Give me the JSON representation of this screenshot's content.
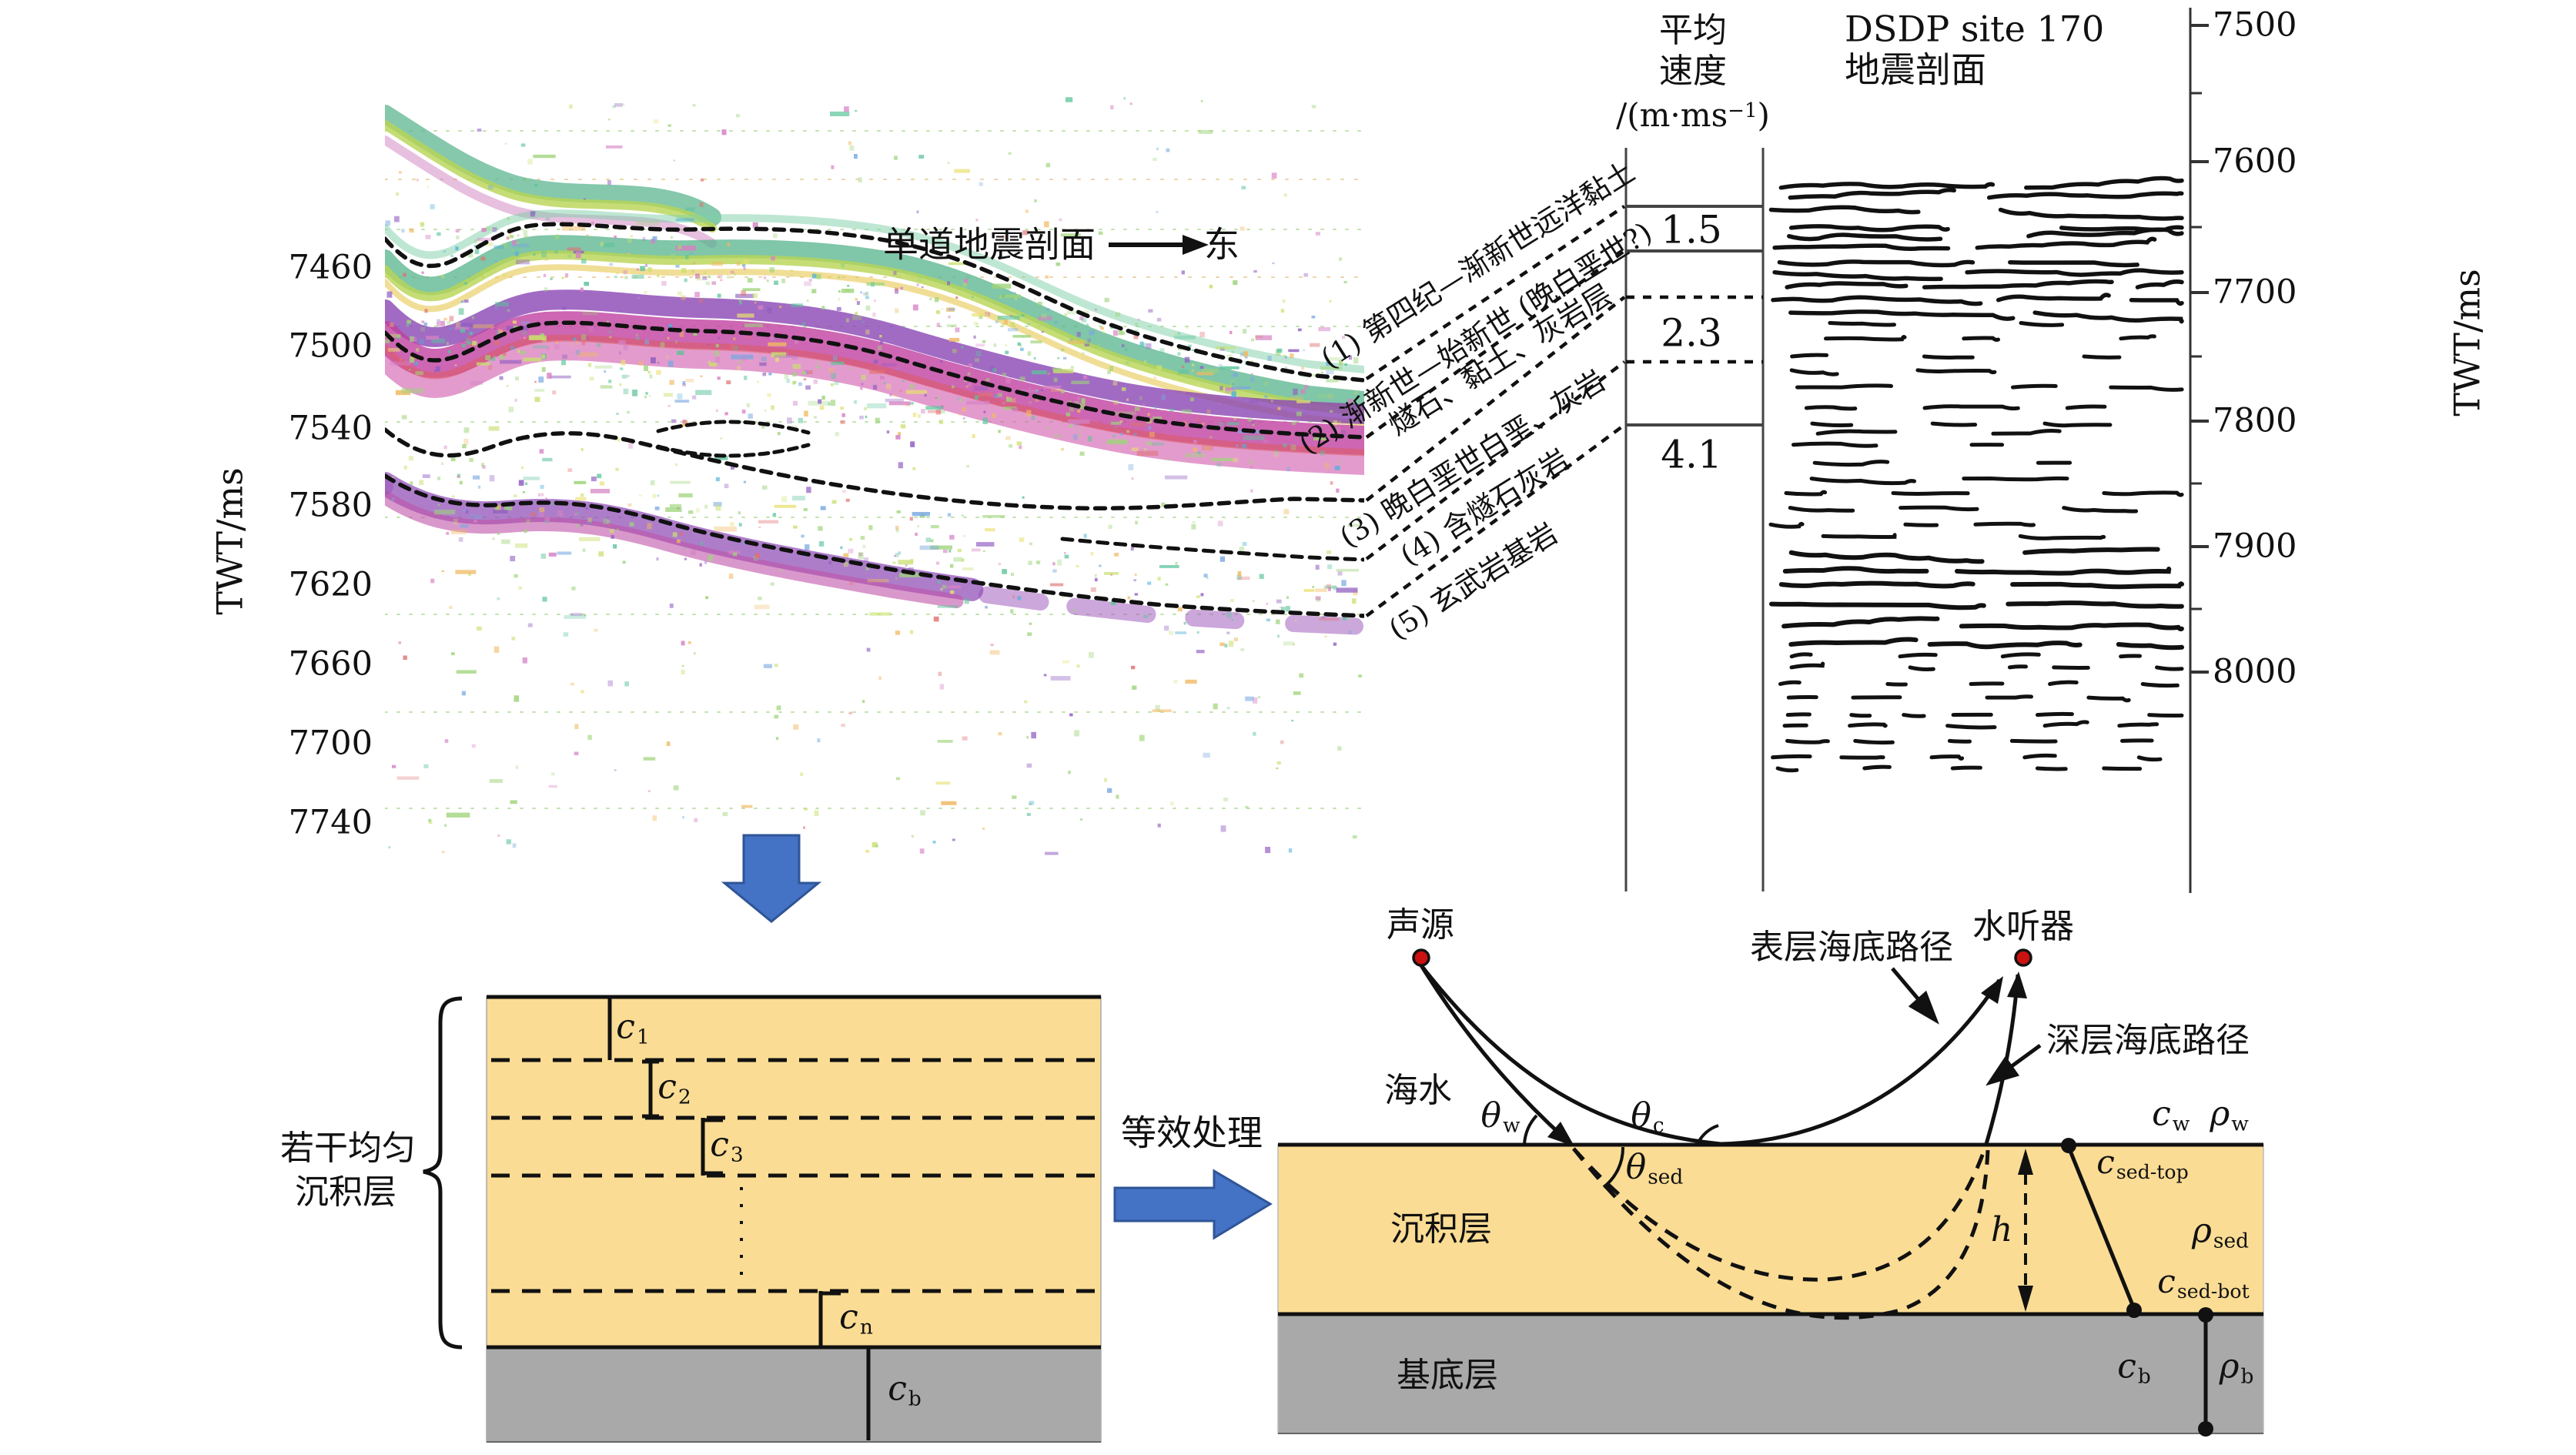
{
  "colors": {
    "sand": "#fadc94",
    "basement_gray": "#a9a9a9",
    "arrow_blue": "#4472c4",
    "marker_red": "#cc1111",
    "seismic_green": "#56b38c",
    "seismic_magenta": "#c040a0",
    "seismic_purple": "#8a46b4"
  },
  "seismic": {
    "title": "单道地震剖面",
    "east_label": "东",
    "axis_label": "TWT/ms",
    "ticks": [
      "7460",
      "7500",
      "7540",
      "7580",
      "7620",
      "7660",
      "7700",
      "7740"
    ]
  },
  "velocity": {
    "header_line1": "平均",
    "header_line2": "速度",
    "unit_prefix": "/(m·ms",
    "unit_sup": "−1",
    "unit_suffix": ")",
    "values": [
      "1.5",
      "2.3",
      "4.1"
    ]
  },
  "dsdp": {
    "title_line1": "DSDP site 170",
    "title_line2": "地震剖面",
    "axis_label": "TWT/ms",
    "ticks": [
      "7500",
      "7600",
      "7700",
      "7800",
      "7900",
      "8000"
    ]
  },
  "strata": {
    "l1": "(1) 第四纪—渐新世远洋黏土",
    "l2a": "(2) 渐新世—始新世 (晚白垩世?)",
    "l2b": "燧石、黏土、灰岩层",
    "l3": "(3) 晚白垩世白垩、灰岩",
    "l4": "(4) 含燧石灰岩",
    "l5": "(5) 玄武岩基岩"
  },
  "model": {
    "brace_line1": "若干均匀",
    "brace_line2": "沉积层",
    "equiv_label": "等效处理"
  },
  "ray": {
    "source": "声源",
    "hydrophone": "水听器",
    "surface_path": "表层海底路径",
    "deep_path": "深层海底路径",
    "seawater": "海水",
    "sediment": "沉积层",
    "basement": "基底层"
  },
  "math": {
    "c1": {
      "b": "c",
      "s": "1"
    },
    "c2": {
      "b": "c",
      "s": "2"
    },
    "c3": {
      "b": "c",
      "s": "3"
    },
    "cn": {
      "b": "c",
      "s": "n"
    },
    "cb": {
      "b": "c",
      "s": "b"
    },
    "h": {
      "b": "h",
      "s": ""
    },
    "theta_w": {
      "b": "θ",
      "s": "w"
    },
    "theta_c": {
      "b": "θ",
      "s": "c"
    },
    "theta_sed": {
      "b": "θ",
      "s": "sed"
    },
    "c_w": {
      "b": "c",
      "s": "w"
    },
    "rho_w": {
      "b": "ρ",
      "s": "w"
    },
    "c_sed_top": {
      "b": "c",
      "s": "sed-top"
    },
    "rho_sed": {
      "b": "ρ",
      "s": "sed"
    },
    "c_sed_bot": {
      "b": "c",
      "s": "sed-bot"
    },
    "rho_b": {
      "b": "ρ",
      "s": "b"
    }
  }
}
